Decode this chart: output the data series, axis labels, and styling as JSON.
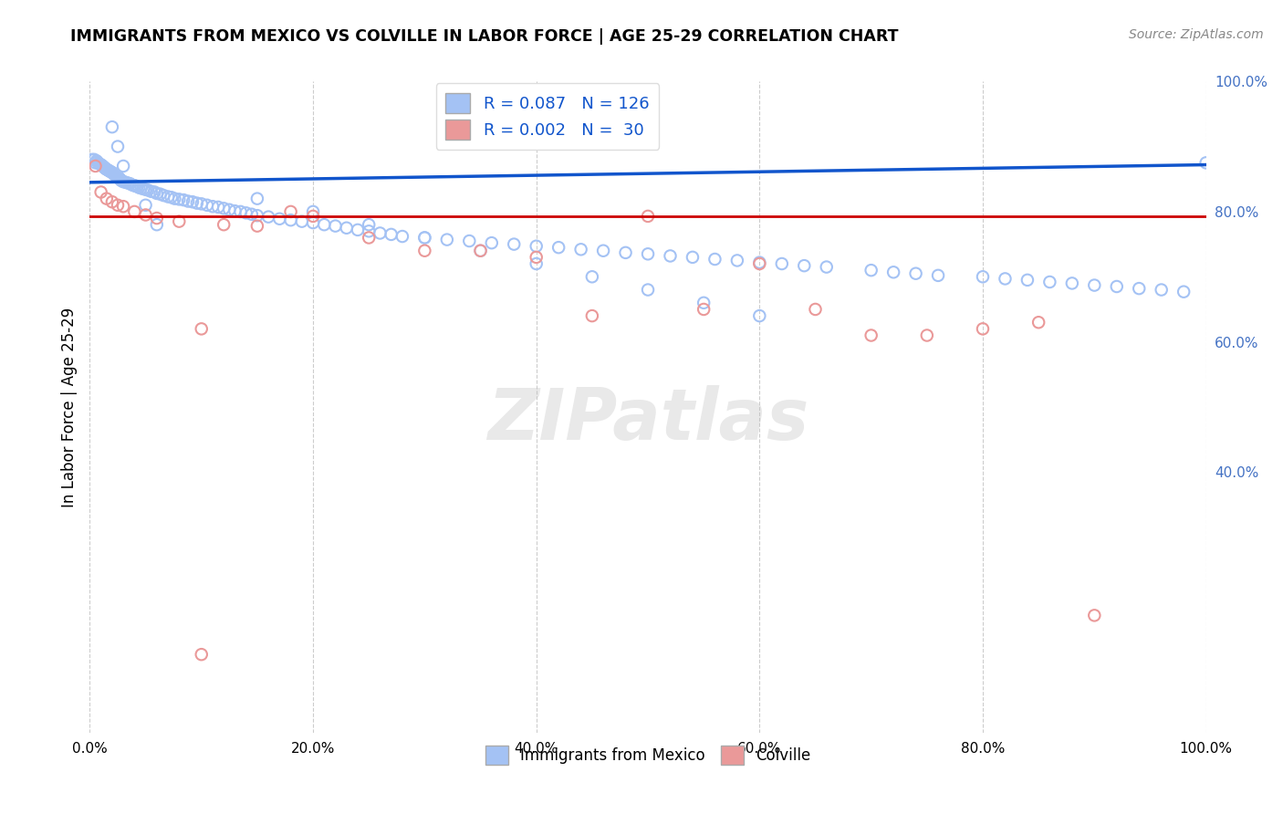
{
  "title": "IMMIGRANTS FROM MEXICO VS COLVILLE IN LABOR FORCE | AGE 25-29 CORRELATION CHART",
  "source": "Source: ZipAtlas.com",
  "ylabel": "In Labor Force | Age 25-29",
  "xlim": [
    0.0,
    1.0
  ],
  "ylim": [
    0.0,
    1.0
  ],
  "x_ticks": [
    0.0,
    0.2,
    0.4,
    0.6,
    0.8,
    1.0
  ],
  "x_tick_labels": [
    "0.0%",
    "20.0%",
    "40.0%",
    "60.0%",
    "80.0%",
    "100.0%"
  ],
  "y_ticks_right": [
    1.0,
    0.8,
    0.6,
    0.4
  ],
  "y_tick_labels_right": [
    "100.0%",
    "80.0%",
    "60.0%",
    "40.0%"
  ],
  "legend_blue_label": "R = 0.087   N = 126",
  "legend_pink_label": "R = 0.002   N =  30",
  "blue_color": "#a4c2f4",
  "pink_color": "#ea9999",
  "blue_line_color": "#1155cc",
  "pink_line_color": "#cc0000",
  "watermark": "ZIPatlas",
  "blue_scatter_x": [
    0.002,
    0.004,
    0.005,
    0.006,
    0.007,
    0.008,
    0.009,
    0.01,
    0.011,
    0.012,
    0.013,
    0.014,
    0.015,
    0.016,
    0.017,
    0.018,
    0.019,
    0.02,
    0.021,
    0.022,
    0.023,
    0.024,
    0.025,
    0.026,
    0.027,
    0.028,
    0.029,
    0.03,
    0.032,
    0.034,
    0.036,
    0.038,
    0.04,
    0.042,
    0.044,
    0.046,
    0.048,
    0.05,
    0.052,
    0.055,
    0.058,
    0.06,
    0.063,
    0.066,
    0.07,
    0.073,
    0.076,
    0.08,
    0.084,
    0.088,
    0.092,
    0.096,
    0.1,
    0.105,
    0.11,
    0.115,
    0.12,
    0.125,
    0.13,
    0.135,
    0.14,
    0.145,
    0.15,
    0.16,
    0.17,
    0.18,
    0.19,
    0.2,
    0.21,
    0.22,
    0.23,
    0.24,
    0.25,
    0.26,
    0.27,
    0.28,
    0.3,
    0.32,
    0.34,
    0.36,
    0.38,
    0.4,
    0.42,
    0.44,
    0.46,
    0.48,
    0.5,
    0.52,
    0.54,
    0.56,
    0.58,
    0.6,
    0.62,
    0.64,
    0.66,
    0.7,
    0.72,
    0.74,
    0.76,
    0.8,
    0.82,
    0.84,
    0.86,
    0.88,
    0.9,
    0.92,
    0.94,
    0.96,
    0.98,
    1.0,
    0.15,
    0.2,
    0.25,
    0.3,
    0.35,
    0.4,
    0.45,
    0.5,
    0.55,
    0.6,
    0.02,
    0.025,
    0.03,
    0.04,
    0.05,
    0.06
  ],
  "blue_scatter_y": [
    0.88,
    0.88,
    0.875,
    0.878,
    0.876,
    0.874,
    0.873,
    0.872,
    0.871,
    0.869,
    0.868,
    0.866,
    0.865,
    0.864,
    0.863,
    0.862,
    0.861,
    0.86,
    0.859,
    0.857,
    0.856,
    0.855,
    0.853,
    0.852,
    0.85,
    0.848,
    0.847,
    0.846,
    0.845,
    0.844,
    0.843,
    0.841,
    0.84,
    0.839,
    0.837,
    0.836,
    0.835,
    0.834,
    0.833,
    0.831,
    0.83,
    0.828,
    0.827,
    0.825,
    0.823,
    0.822,
    0.82,
    0.819,
    0.818,
    0.816,
    0.815,
    0.813,
    0.812,
    0.81,
    0.808,
    0.807,
    0.805,
    0.803,
    0.801,
    0.8,
    0.798,
    0.796,
    0.794,
    0.792,
    0.789,
    0.787,
    0.785,
    0.783,
    0.78,
    0.778,
    0.775,
    0.772,
    0.77,
    0.767,
    0.765,
    0.762,
    0.76,
    0.757,
    0.755,
    0.752,
    0.75,
    0.747,
    0.745,
    0.742,
    0.74,
    0.737,
    0.735,
    0.732,
    0.73,
    0.727,
    0.725,
    0.722,
    0.72,
    0.717,
    0.715,
    0.71,
    0.707,
    0.705,
    0.702,
    0.7,
    0.697,
    0.695,
    0.692,
    0.69,
    0.687,
    0.685,
    0.682,
    0.68,
    0.677,
    0.875,
    0.82,
    0.8,
    0.78,
    0.76,
    0.74,
    0.72,
    0.7,
    0.68,
    0.66,
    0.64,
    0.93,
    0.9,
    0.87,
    0.84,
    0.81,
    0.78
  ],
  "pink_scatter_x": [
    0.005,
    0.01,
    0.015,
    0.02,
    0.025,
    0.03,
    0.04,
    0.05,
    0.06,
    0.08,
    0.1,
    0.12,
    0.15,
    0.18,
    0.2,
    0.25,
    0.3,
    0.35,
    0.4,
    0.45,
    0.5,
    0.55,
    0.6,
    0.65,
    0.7,
    0.75,
    0.8,
    0.85,
    0.9,
    0.1
  ],
  "pink_scatter_y": [
    0.87,
    0.83,
    0.82,
    0.815,
    0.81,
    0.808,
    0.8,
    0.795,
    0.79,
    0.785,
    0.62,
    0.78,
    0.778,
    0.8,
    0.793,
    0.76,
    0.74,
    0.74,
    0.73,
    0.64,
    0.793,
    0.65,
    0.72,
    0.65,
    0.61,
    0.61,
    0.62,
    0.63,
    0.18,
    0.12
  ],
  "blue_trend_x": [
    0.0,
    1.0
  ],
  "blue_trend_y_start": 0.845,
  "blue_trend_y_end": 0.872,
  "pink_trend_y": 0.793
}
